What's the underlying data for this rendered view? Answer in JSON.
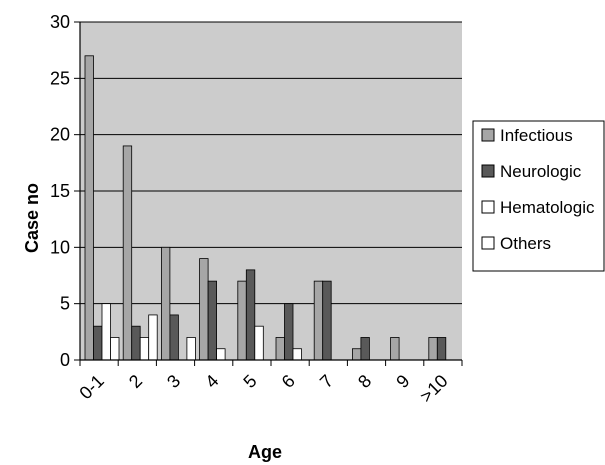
{
  "chart_data": {
    "type": "bar",
    "title": "",
    "xlabel": "Age",
    "ylabel": "Case no",
    "ylim": [
      0,
      30
    ],
    "yticks": [
      0,
      5,
      10,
      15,
      20,
      25,
      30
    ],
    "grid": true,
    "legend_position": "right",
    "categories": [
      "0-1",
      "2",
      "3",
      "4",
      "5",
      "6",
      "7",
      "8",
      "9",
      ">10"
    ],
    "series": [
      {
        "name": "Infectious",
        "color": "#a6a6a6",
        "values": [
          27,
          19,
          10,
          9,
          7,
          2,
          7,
          1,
          2,
          2
        ]
      },
      {
        "name": "Neurologic",
        "color": "#595959",
        "values": [
          3,
          3,
          4,
          7,
          8,
          5,
          7,
          2,
          0,
          2
        ]
      },
      {
        "name": "Hematologic",
        "color": "#ffffff",
        "values": [
          5,
          2,
          0,
          1,
          3,
          1,
          0,
          0,
          0,
          0
        ]
      },
      {
        "name": "Others",
        "color": "#ffffff",
        "values": [
          2,
          4,
          2,
          0,
          0,
          0,
          0,
          0,
          0,
          0
        ]
      }
    ],
    "plot_background": "#cccccc"
  }
}
